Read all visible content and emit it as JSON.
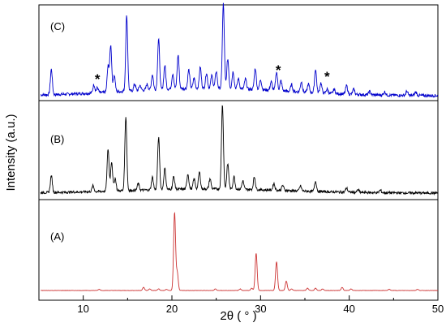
{
  "chart_data": {
    "type": "line",
    "xlabel": "2θ ( ° )",
    "ylabel": "Intensity (a.u.)",
    "xlim": [
      5,
      50
    ],
    "xticks": [
      10,
      20,
      30,
      40,
      50
    ],
    "x_tick_labels": [
      "10",
      "20",
      "30",
      "40",
      "50"
    ],
    "grid": false,
    "legend": "none",
    "marker": "*",
    "panels": [
      {
        "label": "(C)",
        "color": "#0000cc",
        "baseline": 0.09,
        "noise": 0.035,
        "peaks": [
          [
            6.4,
            0.3
          ],
          [
            11.2,
            0.1
          ],
          [
            11.6,
            0.06
          ],
          [
            12.8,
            0.3
          ],
          [
            13.1,
            0.55
          ],
          [
            13.5,
            0.2
          ],
          [
            14.9,
            0.9
          ],
          [
            15.8,
            0.08
          ],
          [
            16.4,
            0.06
          ],
          [
            17.2,
            0.07
          ],
          [
            17.8,
            0.18
          ],
          [
            18.5,
            0.6
          ],
          [
            19.2,
            0.28
          ],
          [
            20.1,
            0.18
          ],
          [
            20.7,
            0.4
          ],
          [
            21.9,
            0.22
          ],
          [
            22.5,
            0.12
          ],
          [
            23.2,
            0.25
          ],
          [
            23.9,
            0.18
          ],
          [
            24.5,
            0.15
          ],
          [
            25.0,
            0.2
          ],
          [
            25.8,
            1.0
          ],
          [
            26.3,
            0.35
          ],
          [
            26.9,
            0.2
          ],
          [
            27.5,
            0.12
          ],
          [
            28.3,
            0.12
          ],
          [
            29.4,
            0.25
          ],
          [
            30.0,
            0.12
          ],
          [
            31.2,
            0.1
          ],
          [
            31.8,
            0.22
          ],
          [
            32.3,
            0.12
          ],
          [
            33.5,
            0.08
          ],
          [
            34.6,
            0.12
          ],
          [
            35.4,
            0.1
          ],
          [
            36.2,
            0.28
          ],
          [
            36.8,
            0.12
          ],
          [
            37.5,
            0.05
          ],
          [
            38.3,
            0.05
          ],
          [
            39.7,
            0.1
          ],
          [
            40.5,
            0.06
          ],
          [
            42.3,
            0.04
          ],
          [
            44.0,
            0.04
          ],
          [
            46.5,
            0.05
          ],
          [
            47.5,
            0.04
          ]
        ],
        "stars": [
          11.6,
          32.0,
          37.5
        ]
      },
      {
        "label": "(B)",
        "color": "#000000",
        "baseline": 0.05,
        "noise": 0.03,
        "peaks": [
          [
            6.4,
            0.2
          ],
          [
            11.1,
            0.07
          ],
          [
            12.8,
            0.5
          ],
          [
            13.2,
            0.35
          ],
          [
            13.6,
            0.15
          ],
          [
            14.8,
            0.88
          ],
          [
            16.2,
            0.08
          ],
          [
            17.8,
            0.15
          ],
          [
            18.5,
            0.62
          ],
          [
            19.2,
            0.25
          ],
          [
            20.2,
            0.15
          ],
          [
            21.8,
            0.18
          ],
          [
            22.5,
            0.12
          ],
          [
            23.1,
            0.2
          ],
          [
            24.3,
            0.12
          ],
          [
            25.7,
            1.0
          ],
          [
            26.3,
            0.3
          ],
          [
            27.0,
            0.15
          ],
          [
            28.0,
            0.1
          ],
          [
            29.3,
            0.15
          ],
          [
            31.5,
            0.08
          ],
          [
            32.5,
            0.06
          ],
          [
            34.5,
            0.06
          ],
          [
            36.2,
            0.12
          ],
          [
            39.7,
            0.05
          ],
          [
            41.0,
            0.03
          ],
          [
            43.5,
            0.03
          ]
        ],
        "stars": []
      },
      {
        "label": "(A)",
        "color": "#cc3333",
        "baseline": 0.0,
        "noise": 0.004,
        "peaks": [
          [
            11.8,
            0.015
          ],
          [
            16.8,
            0.04
          ],
          [
            17.5,
            0.02
          ],
          [
            18.5,
            0.02
          ],
          [
            19.4,
            0.015
          ],
          [
            20.3,
            1.0
          ],
          [
            20.6,
            0.23
          ],
          [
            24.9,
            0.02
          ],
          [
            27.7,
            0.02
          ],
          [
            29.0,
            0.03
          ],
          [
            29.5,
            0.48
          ],
          [
            31.8,
            0.37
          ],
          [
            32.9,
            0.12
          ],
          [
            33.5,
            0.02
          ],
          [
            35.3,
            0.03
          ],
          [
            36.2,
            0.03
          ],
          [
            37.0,
            0.02
          ],
          [
            39.2,
            0.04
          ],
          [
            40.2,
            0.02
          ],
          [
            44.5,
            0.015
          ],
          [
            47.7,
            0.015
          ]
        ],
        "stars": []
      }
    ]
  }
}
